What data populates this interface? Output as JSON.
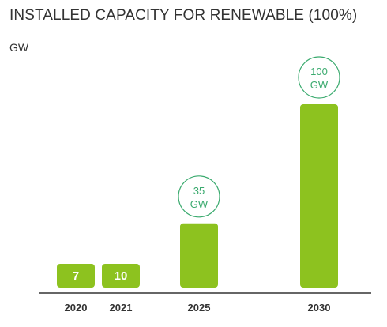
{
  "chart_data": {
    "type": "bar",
    "title": "INSTALLED CAPACITY FOR RENEWABLE (100%)",
    "ylabel": "GW",
    "xlabel": "",
    "categories": [
      "2020",
      "2021",
      "2025",
      "2030"
    ],
    "values": [
      7,
      10,
      35,
      100
    ],
    "bar_labels": [
      "7",
      "10",
      "",
      ""
    ],
    "callouts": [
      {
        "category": "2025",
        "line1": "35",
        "line2": "GW"
      },
      {
        "category": "2030",
        "line1": "100",
        "line2": "GW"
      }
    ],
    "ylim": [
      0,
      100
    ],
    "grid": false,
    "colors": {
      "bar": "#8dc21f",
      "bar_text": "#ffffff",
      "callout": "#3aaa6e",
      "axis": "#333333",
      "text": "#333333"
    }
  }
}
